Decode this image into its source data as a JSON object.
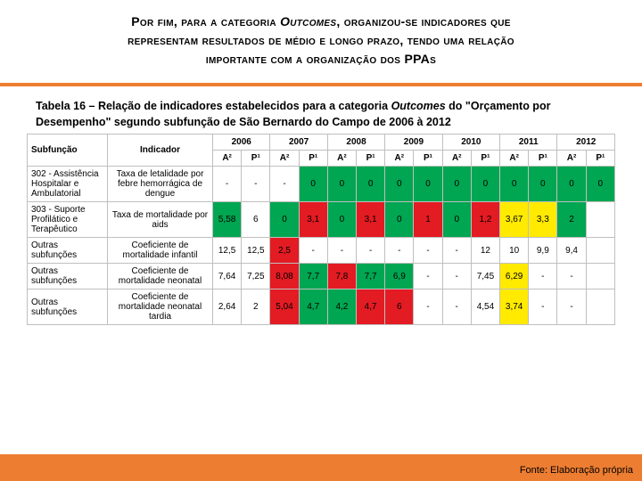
{
  "colors": {
    "orange": "#ed7d31",
    "green": "#00a651",
    "red": "#e31b23",
    "yellow": "#ffea00",
    "grid": "#bfbfbf",
    "white": "#ffffff"
  },
  "header": {
    "line1_pre": "Por fim, para a categoria",
    "line1_outcomes": "Outcomes",
    "line1_post": ", organizou-se indicadores que",
    "line2": "representam resultados de médio e longo prazo, tendo uma relação",
    "line3_pre": "importante com a organização dos",
    "line3_ppas": "PPAs"
  },
  "caption": {
    "prefix": "Tabela 16 – Relação de indicadores estabelecidos para a categoria ",
    "outcomes": "Outcomes",
    "mid": " do \"Orçamento por Desempenho\" segundo subfunção de São Bernardo do Campo de 2006 à 2012"
  },
  "table": {
    "years": [
      "2006",
      "2007",
      "2008",
      "2009",
      "2010",
      "2011",
      "2012"
    ],
    "subhead_a": "A²",
    "subhead_p": "P¹",
    "col_sub": "Subfunção",
    "col_ind": "Indicador",
    "rows": [
      {
        "sub": "302 - Assistência Hospitalar e Ambulatorial",
        "ind": "Taxa de letalidade por febre hemorrágica de dengue",
        "cells": [
          {
            "v": "-",
            "c": "white"
          },
          {
            "v": "-",
            "c": "white"
          },
          {
            "v": "-",
            "c": "white"
          },
          {
            "v": "0",
            "c": "green"
          },
          {
            "v": "0",
            "c": "green"
          },
          {
            "v": "0",
            "c": "green"
          },
          {
            "v": "0",
            "c": "green"
          },
          {
            "v": "0",
            "c": "green"
          },
          {
            "v": "0",
            "c": "green"
          },
          {
            "v": "0",
            "c": "green"
          },
          {
            "v": "0",
            "c": "green"
          },
          {
            "v": "0",
            "c": "green"
          },
          {
            "v": "0",
            "c": "green"
          },
          {
            "v": "0",
            "c": "green"
          }
        ]
      },
      {
        "sub": "303 - Suporte Profilático e Terapêutico",
        "ind": "Taxa de mortalidade por aids",
        "cells": [
          {
            "v": "5,58",
            "c": "green"
          },
          {
            "v": "6",
            "c": "white"
          },
          {
            "v": "0",
            "c": "green"
          },
          {
            "v": "3,1",
            "c": "red"
          },
          {
            "v": "0",
            "c": "green"
          },
          {
            "v": "3,1",
            "c": "red"
          },
          {
            "v": "0",
            "c": "green"
          },
          {
            "v": "1",
            "c": "red"
          },
          {
            "v": "0",
            "c": "green"
          },
          {
            "v": "1,2",
            "c": "red"
          },
          {
            "v": "3,67",
            "c": "yellow"
          },
          {
            "v": "3,3",
            "c": "yellow"
          },
          {
            "v": "2",
            "c": "green"
          },
          {
            "v": "",
            "c": "white"
          }
        ]
      },
      {
        "sub": "Outras subfunções",
        "ind": "Coeficiente de mortalidade infantil",
        "cells": [
          {
            "v": "12,5",
            "c": "white"
          },
          {
            "v": "12,5",
            "c": "white"
          },
          {
            "v": "2,5",
            "c": "red"
          },
          {
            "v": "-",
            "c": "white"
          },
          {
            "v": "-",
            "c": "white"
          },
          {
            "v": "-",
            "c": "white"
          },
          {
            "v": "-",
            "c": "white"
          },
          {
            "v": "-",
            "c": "white"
          },
          {
            "v": "-",
            "c": "white"
          },
          {
            "v": "12",
            "c": "white"
          },
          {
            "v": "10",
            "c": "white"
          },
          {
            "v": "9,9",
            "c": "white"
          },
          {
            "v": "9,4",
            "c": "white"
          },
          {
            "v": "",
            "c": "white"
          }
        ]
      },
      {
        "sub": "Outras subfunções",
        "ind": "Coeficiente de mortalidade neonatal",
        "cells": [
          {
            "v": "7,64",
            "c": "white"
          },
          {
            "v": "7,25",
            "c": "white"
          },
          {
            "v": "8,08",
            "c": "red"
          },
          {
            "v": "7,7",
            "c": "green"
          },
          {
            "v": "7,8",
            "c": "red"
          },
          {
            "v": "7,7",
            "c": "green"
          },
          {
            "v": "6,9",
            "c": "green"
          },
          {
            "v": "-",
            "c": "white"
          },
          {
            "v": "-",
            "c": "white"
          },
          {
            "v": "7,45",
            "c": "white"
          },
          {
            "v": "6,29",
            "c": "yellow"
          },
          {
            "v": "-",
            "c": "white"
          },
          {
            "v": "-",
            "c": "white"
          },
          {
            "v": "",
            "c": "white"
          }
        ]
      },
      {
        "sub": "Outras subfunções",
        "ind": "Coeficiente de mortalidade neonatal tardia",
        "cells": [
          {
            "v": "2,64",
            "c": "white"
          },
          {
            "v": "2",
            "c": "white"
          },
          {
            "v": "5,04",
            "c": "red"
          },
          {
            "v": "4,7",
            "c": "green"
          },
          {
            "v": "4,2",
            "c": "green"
          },
          {
            "v": "4,7",
            "c": "red"
          },
          {
            "v": "6",
            "c": "red"
          },
          {
            "v": "-",
            "c": "white"
          },
          {
            "v": "-",
            "c": "white"
          },
          {
            "v": "4,54",
            "c": "white"
          },
          {
            "v": "3,74",
            "c": "yellow"
          },
          {
            "v": "-",
            "c": "white"
          },
          {
            "v": "-",
            "c": "white"
          },
          {
            "v": "",
            "c": "white"
          }
        ]
      }
    ]
  },
  "source": "Fonte: Elaboração própria"
}
